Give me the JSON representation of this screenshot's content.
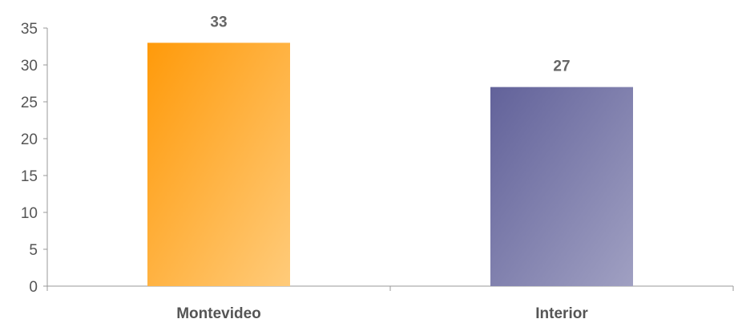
{
  "chart_data": {
    "type": "bar",
    "categories": [
      "Montevideo",
      "Interior"
    ],
    "values": [
      33,
      27
    ],
    "data_labels": [
      "33",
      "27"
    ],
    "ylim": [
      0,
      35
    ],
    "yticks": [
      0,
      5,
      10,
      15,
      20,
      25,
      30,
      35
    ],
    "ytick_labels": [
      "0",
      "5",
      "10",
      "15",
      "20",
      "25",
      "30",
      "35"
    ],
    "title": "",
    "xlabel": "",
    "ylabel": "",
    "grid": false,
    "legend": "none",
    "bar_colors": [
      {
        "start": "#ff9a0a",
        "end": "#ffcb7a"
      },
      {
        "start": "#62629a",
        "end": "#a0a0c2"
      }
    ],
    "axis_color": "#999999"
  }
}
